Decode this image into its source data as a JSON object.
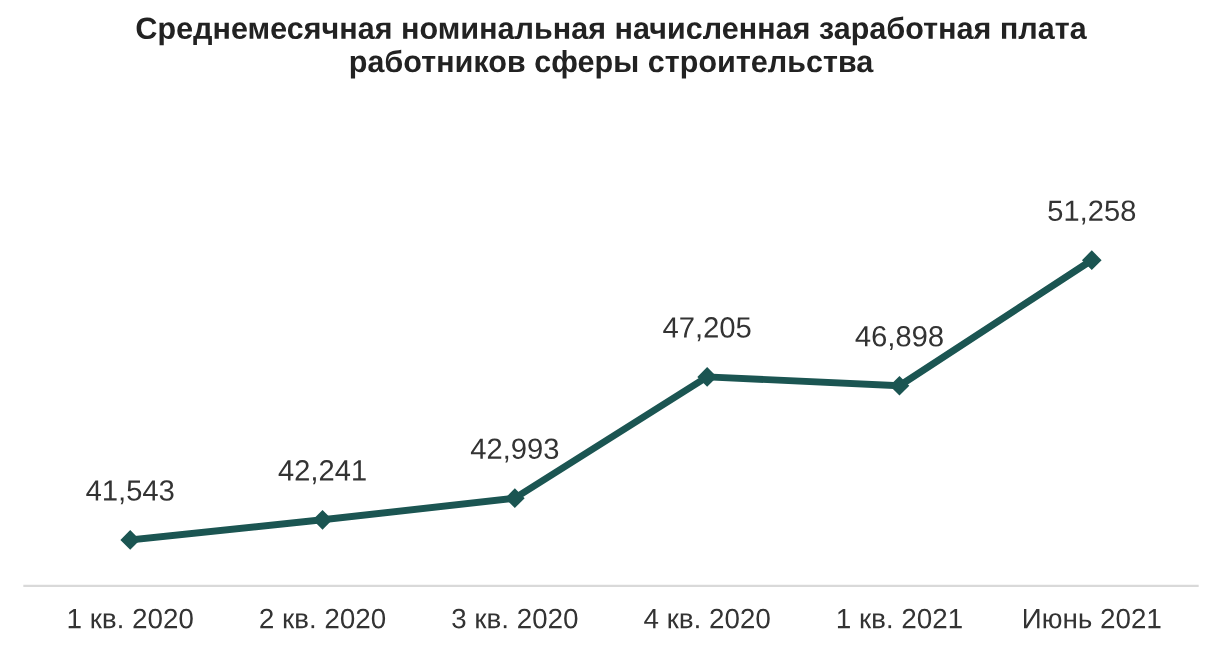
{
  "chart_data": {
    "type": "line",
    "title": "Среднемесячная номинальная начисленная заработная плата\nработников сферы строительства",
    "categories": [
      "1 кв. 2020",
      "2 кв. 2020",
      "3 кв. 2020",
      "4 кв. 2020",
      "1 кв. 2021",
      "Июнь 2021"
    ],
    "series": [
      {
        "color": "#1b5552",
        "values": [
          41543,
          42241,
          42993,
          47205,
          46898,
          51258
        ],
        "value_labels": [
          "41,543",
          "42,241",
          "42,993",
          "47,205",
          "46,898",
          "51,258"
        ]
      }
    ],
    "marker": "diamond",
    "tick_labels": "x"
  }
}
